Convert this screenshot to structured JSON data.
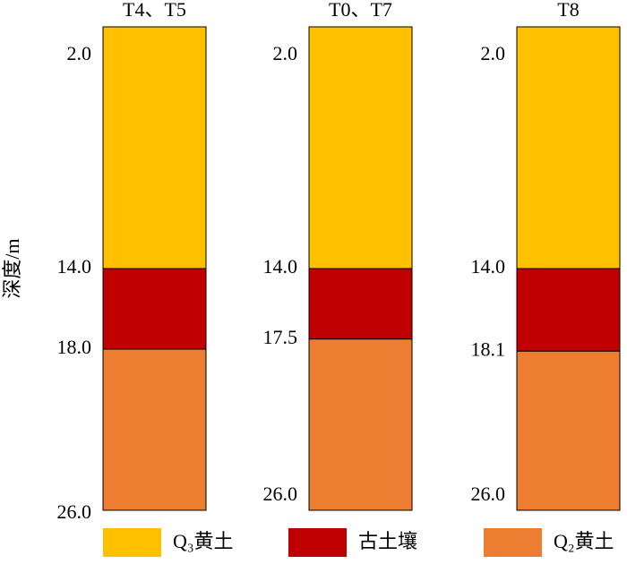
{
  "chart_data": {
    "type": "stratigraphic-column",
    "ylabel": "深度/m",
    "ylim": [
      2,
      26
    ],
    "columns": [
      {
        "name": "T4、T5",
        "depths": [
          {
            "value": 2,
            "label": "2.0"
          },
          {
            "value": 14,
            "label": "14.0"
          },
          {
            "value": 18,
            "label": "18.0"
          },
          {
            "value": 26,
            "label": "26.0"
          }
        ]
      },
      {
        "name": "T0、T7",
        "depths": [
          {
            "value": 2,
            "label": "2.0"
          },
          {
            "value": 14,
            "label": "14.0"
          },
          {
            "value": 17.5,
            "label": "17.5"
          },
          {
            "value": 26,
            "label": "26.0"
          }
        ]
      },
      {
        "name": "T8",
        "depths": [
          {
            "value": 2,
            "label": "2.0"
          },
          {
            "value": 14,
            "label": "14.0"
          },
          {
            "value": 18.1,
            "label": "18.1"
          },
          {
            "value": 26,
            "label": "26.0"
          }
        ]
      }
    ],
    "series": [
      {
        "name": "Q₃黄土",
        "color": "#FFC000"
      },
      {
        "name": "古土壤",
        "color": "#C00000"
      },
      {
        "name": "Q₂黄土",
        "color": "#ED7D31"
      }
    ]
  }
}
